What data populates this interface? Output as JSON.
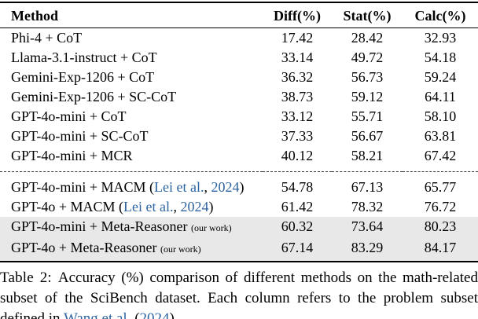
{
  "table": {
    "headers": {
      "method": "Method",
      "diff": "Diff(%)",
      "stat": "Stat(%)",
      "calc": "Calc(%)"
    },
    "rows": [
      {
        "method": "Phi-4 + CoT",
        "diff": "17.42",
        "stat": "28.42",
        "calc": "32.93"
      },
      {
        "method": "Llama-3.1-instruct + CoT",
        "diff": "33.14",
        "stat": "49.72",
        "calc": "54.18"
      },
      {
        "method": "Gemini-Exp-1206 + CoT",
        "diff": "36.32",
        "stat": "56.73",
        "calc": "59.24"
      },
      {
        "method": "Gemini-Exp-1206 + SC-CoT",
        "diff": "38.73",
        "stat": "59.12",
        "calc": "64.11"
      },
      {
        "method": "GPT-4o-mini + CoT",
        "diff": "33.12",
        "stat": "55.71",
        "calc": "58.10"
      },
      {
        "method": "GPT-4o-mini + SC-CoT",
        "diff": "37.33",
        "stat": "56.67",
        "calc": "63.81"
      },
      {
        "method": "GPT-4o-mini + MCR",
        "diff": "40.12",
        "stat": "58.21",
        "calc": "67.42"
      },
      {
        "method_prefix": "GPT-4o-mini + MACM (",
        "cite_name": "Lei et al.",
        "cite_sep": ", ",
        "cite_year": "2024",
        "method_suffix": ")",
        "diff": "54.78",
        "stat": "67.13",
        "calc": "65.77"
      },
      {
        "method_prefix": "GPT-4o + MACM (",
        "cite_name": "Lei et al.",
        "cite_sep": ", ",
        "cite_year": "2024",
        "method_suffix": ")",
        "diff": "61.42",
        "stat": "78.32",
        "calc": "76.72"
      },
      {
        "method": "GPT-4o-mini + Meta-Reasoner",
        "note": "(our work)",
        "diff": "60.32",
        "stat": "73.64",
        "calc": "80.23"
      },
      {
        "method": "GPT-4o + Meta-Reasoner",
        "note": "(our work)",
        "diff": "67.14",
        "stat": "83.29",
        "calc": "84.17"
      }
    ]
  },
  "caption": {
    "label": "Table 2:",
    "body": "Accuracy (%) comparison of different methods on the math-related subset of the SciBench dataset. Each column refers to the problem subset defined in",
    "cite_name": "Wang et al.",
    "cite_open": "(",
    "cite_year": "2024",
    "cite_close": ")."
  },
  "colors": {
    "citation_blue": "#2d64a0",
    "highlight_bg": "#e8e8e8"
  }
}
